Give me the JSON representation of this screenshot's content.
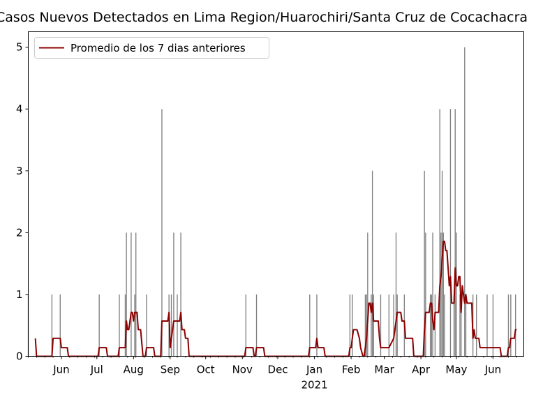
{
  "chart_data": {
    "type": "bar",
    "title": "Casos Nuevos Detectados en Lima Region/Huarochiri/Santa Cruz de Cocachacra",
    "xlabel": "",
    "ylabel": "",
    "ylim": [
      0,
      5.25
    ],
    "yticks": [
      "0",
      "1",
      "2",
      "3",
      "4",
      "5"
    ],
    "xlim": [
      "2020-05-04",
      "2021-06-27"
    ],
    "xticks": [
      {
        "date": "2020-06-01",
        "label": "Jun"
      },
      {
        "date": "2020-07-01",
        "label": "Jul"
      },
      {
        "date": "2020-08-01",
        "label": "Aug"
      },
      {
        "date": "2020-09-01",
        "label": "Sep"
      },
      {
        "date": "2020-10-01",
        "label": "Oct"
      },
      {
        "date": "2020-11-01",
        "label": "Nov"
      },
      {
        "date": "2020-12-01",
        "label": "Dec"
      },
      {
        "date": "2021-01-01",
        "label": "Jan"
      },
      {
        "date": "2021-02-01",
        "label": "Feb"
      },
      {
        "date": "2021-03-01",
        "label": "Mar"
      },
      {
        "date": "2021-04-01",
        "label": "Apr"
      },
      {
        "date": "2021-05-01",
        "label": "May"
      },
      {
        "date": "2021-06-01",
        "label": "Jun"
      }
    ],
    "year_label": "2021",
    "grid": false,
    "legend": {
      "position": "top-left",
      "entries": [
        "Promedio de los 7 dias anteriores"
      ]
    },
    "bar_color": "#808080",
    "line_color": "#8b0000",
    "series": [
      {
        "kind": "bar",
        "points": [
          [
            "2020-05-04",
            1
          ],
          [
            "2020-05-24",
            1
          ],
          [
            "2020-05-31",
            1
          ],
          [
            "2020-07-03",
            1
          ],
          [
            "2020-07-20",
            1
          ],
          [
            "2020-07-25",
            1
          ],
          [
            "2020-07-26",
            2
          ],
          [
            "2020-07-30",
            2
          ],
          [
            "2020-08-02",
            1
          ],
          [
            "2020-08-03",
            2
          ],
          [
            "2020-08-12",
            1
          ],
          [
            "2020-08-25",
            4
          ],
          [
            "2020-08-31",
            1
          ],
          [
            "2020-09-02",
            1
          ],
          [
            "2020-09-04",
            2
          ],
          [
            "2020-09-07",
            1
          ],
          [
            "2020-09-10",
            2
          ],
          [
            "2020-11-04",
            1
          ],
          [
            "2020-11-13",
            1
          ],
          [
            "2020-12-28",
            1
          ],
          [
            "2021-01-03",
            1
          ],
          [
            "2021-01-31",
            1
          ],
          [
            "2021-02-02",
            1
          ],
          [
            "2021-02-13",
            1
          ],
          [
            "2021-02-14",
            1
          ],
          [
            "2021-02-15",
            2
          ],
          [
            "2021-02-18",
            1
          ],
          [
            "2021-02-19",
            3
          ],
          [
            "2021-02-20",
            1
          ],
          [
            "2021-02-26",
            1
          ],
          [
            "2021-03-05",
            1
          ],
          [
            "2021-03-09",
            1
          ],
          [
            "2021-03-11",
            2
          ],
          [
            "2021-03-12",
            1
          ],
          [
            "2021-03-18",
            1
          ],
          [
            "2021-04-04",
            3
          ],
          [
            "2021-04-05",
            2
          ],
          [
            "2021-04-09",
            1
          ],
          [
            "2021-04-10",
            1
          ],
          [
            "2021-04-11",
            2
          ],
          [
            "2021-04-13",
            1
          ],
          [
            "2021-04-17",
            4
          ],
          [
            "2021-04-18",
            2
          ],
          [
            "2021-04-19",
            3
          ],
          [
            "2021-04-20",
            2
          ],
          [
            "2021-04-21",
            1
          ],
          [
            "2021-04-26",
            4
          ],
          [
            "2021-04-29",
            1
          ],
          [
            "2021-04-30",
            4
          ],
          [
            "2021-05-01",
            2
          ],
          [
            "2021-05-04",
            1
          ],
          [
            "2021-05-05",
            1
          ],
          [
            "2021-05-08",
            5
          ],
          [
            "2021-05-09",
            1
          ],
          [
            "2021-05-15",
            1
          ],
          [
            "2021-05-18",
            1
          ],
          [
            "2021-05-27",
            1
          ],
          [
            "2021-06-01",
            1
          ],
          [
            "2021-06-14",
            1
          ],
          [
            "2021-06-16",
            1
          ],
          [
            "2021-06-20",
            1
          ]
        ]
      },
      {
        "kind": "line",
        "name": "Promedio de los 7 dias anteriores",
        "points": [
          [
            "2020-05-10",
            0.29
          ],
          [
            "2020-05-11",
            0
          ],
          [
            "2020-05-24",
            0
          ],
          [
            "2020-05-25",
            0.29
          ],
          [
            "2020-05-31",
            0.29
          ],
          [
            "2020-06-01",
            0.14
          ],
          [
            "2020-06-06",
            0.14
          ],
          [
            "2020-06-07",
            0
          ],
          [
            "2020-07-02",
            0
          ],
          [
            "2020-07-03",
            0.14
          ],
          [
            "2020-07-09",
            0.14
          ],
          [
            "2020-07-10",
            0
          ],
          [
            "2020-07-19",
            0
          ],
          [
            "2020-07-20",
            0.14
          ],
          [
            "2020-07-25",
            0.14
          ],
          [
            "2020-07-26",
            0.57
          ],
          [
            "2020-07-27",
            0.43
          ],
          [
            "2020-07-28",
            0.43
          ],
          [
            "2020-07-30",
            0.71
          ],
          [
            "2020-07-31",
            0.71
          ],
          [
            "2020-08-01",
            0.57
          ],
          [
            "2020-08-02",
            0.71
          ],
          [
            "2020-08-03",
            0.71
          ],
          [
            "2020-08-04",
            0.71
          ],
          [
            "2020-08-05",
            0.43
          ],
          [
            "2020-08-07",
            0.43
          ],
          [
            "2020-08-09",
            0
          ],
          [
            "2020-08-11",
            0
          ],
          [
            "2020-08-12",
            0.14
          ],
          [
            "2020-08-18",
            0.14
          ],
          [
            "2020-08-19",
            0
          ],
          [
            "2020-08-24",
            0
          ],
          [
            "2020-08-25",
            0.57
          ],
          [
            "2020-08-30",
            0.57
          ],
          [
            "2020-08-31",
            0.71
          ],
          [
            "2020-09-01",
            0.14
          ],
          [
            "2020-09-02",
            0.29
          ],
          [
            "2020-09-04",
            0.57
          ],
          [
            "2020-09-09",
            0.57
          ],
          [
            "2020-09-10",
            0.71
          ],
          [
            "2020-09-11",
            0.43
          ],
          [
            "2020-09-13",
            0.43
          ],
          [
            "2020-09-14",
            0.29
          ],
          [
            "2020-09-16",
            0.29
          ],
          [
            "2020-09-17",
            0
          ],
          [
            "2020-11-03",
            0
          ],
          [
            "2020-11-04",
            0.14
          ],
          [
            "2020-11-10",
            0.14
          ],
          [
            "2020-11-11",
            0
          ],
          [
            "2020-11-12",
            0
          ],
          [
            "2020-11-13",
            0.14
          ],
          [
            "2020-11-19",
            0.14
          ],
          [
            "2020-11-20",
            0
          ],
          [
            "2020-12-27",
            0
          ],
          [
            "2020-12-28",
            0.14
          ],
          [
            "2021-01-02",
            0.14
          ],
          [
            "2021-01-03",
            0.29
          ],
          [
            "2021-01-04",
            0.14
          ],
          [
            "2021-01-09",
            0.14
          ],
          [
            "2021-01-10",
            0
          ],
          [
            "2021-01-30",
            0
          ],
          [
            "2021-01-31",
            0.14
          ],
          [
            "2021-02-01",
            0.14
          ],
          [
            "2021-02-02",
            0.29
          ],
          [
            "2021-02-03",
            0.43
          ],
          [
            "2021-02-06",
            0.43
          ],
          [
            "2021-02-08",
            0.29
          ],
          [
            "2021-02-09",
            0.14
          ],
          [
            "2021-02-11",
            0
          ],
          [
            "2021-02-12",
            0
          ],
          [
            "2021-02-13",
            0.14
          ],
          [
            "2021-02-14",
            0.29
          ],
          [
            "2021-02-15",
            0.57
          ],
          [
            "2021-02-16",
            0.86
          ],
          [
            "2021-02-17",
            0.86
          ],
          [
            "2021-02-18",
            0.71
          ],
          [
            "2021-02-19",
            0.86
          ],
          [
            "2021-02-20",
            0.57
          ],
          [
            "2021-02-24",
            0.57
          ],
          [
            "2021-02-25",
            0.29
          ],
          [
            "2021-02-26",
            0.14
          ],
          [
            "2021-03-04",
            0.14
          ],
          [
            "2021-03-05",
            0.14
          ],
          [
            "2021-03-09",
            0.29
          ],
          [
            "2021-03-11",
            0.57
          ],
          [
            "2021-03-12",
            0.71
          ],
          [
            "2021-03-15",
            0.71
          ],
          [
            "2021-03-16",
            0.57
          ],
          [
            "2021-03-18",
            0.57
          ],
          [
            "2021-03-19",
            0.29
          ],
          [
            "2021-03-25",
            0.29
          ],
          [
            "2021-03-26",
            0
          ],
          [
            "2021-04-03",
            0
          ],
          [
            "2021-04-04",
            0.43
          ],
          [
            "2021-04-05",
            0.71
          ],
          [
            "2021-04-08",
            0.71
          ],
          [
            "2021-04-09",
            0.86
          ],
          [
            "2021-04-10",
            0.86
          ],
          [
            "2021-04-11",
            0.57
          ],
          [
            "2021-04-12",
            0.43
          ],
          [
            "2021-04-13",
            0.71
          ],
          [
            "2021-04-16",
            0.71
          ],
          [
            "2021-04-17",
            1.14
          ],
          [
            "2021-04-18",
            1.29
          ],
          [
            "2021-04-19",
            1.57
          ],
          [
            "2021-04-20",
            1.86
          ],
          [
            "2021-04-21",
            1.86
          ],
          [
            "2021-04-22",
            1.71
          ],
          [
            "2021-04-23",
            1.71
          ],
          [
            "2021-04-24",
            1.43
          ],
          [
            "2021-04-25",
            1.14
          ],
          [
            "2021-04-26",
            1.29
          ],
          [
            "2021-04-27",
            0.86
          ],
          [
            "2021-04-29",
            0.86
          ],
          [
            "2021-04-30",
            1.43
          ],
          [
            "2021-05-01",
            1.14
          ],
          [
            "2021-05-02",
            1.14
          ],
          [
            "2021-05-03",
            1.29
          ],
          [
            "2021-05-04",
            1.29
          ],
          [
            "2021-05-05",
            0.71
          ],
          [
            "2021-05-06",
            1.14
          ],
          [
            "2021-05-07",
            1.0
          ],
          [
            "2021-05-08",
            0.86
          ],
          [
            "2021-05-09",
            1.0
          ],
          [
            "2021-05-10",
            0.86
          ],
          [
            "2021-05-14",
            0.86
          ],
          [
            "2021-05-15",
            0.29
          ],
          [
            "2021-05-16",
            0.43
          ],
          [
            "2021-05-17",
            0.29
          ],
          [
            "2021-05-20",
            0.29
          ],
          [
            "2021-05-21",
            0.14
          ],
          [
            "2021-05-27",
            0.14
          ],
          [
            "2021-06-01",
            0.14
          ],
          [
            "2021-06-07",
            0.14
          ],
          [
            "2021-06-08",
            0
          ],
          [
            "2021-06-13",
            0
          ],
          [
            "2021-06-14",
            0.14
          ],
          [
            "2021-06-15",
            0.14
          ],
          [
            "2021-06-16",
            0.29
          ],
          [
            "2021-06-19",
            0.29
          ],
          [
            "2021-06-20",
            0.43
          ],
          [
            "2021-06-21",
            0.43
          ]
        ]
      }
    ]
  }
}
